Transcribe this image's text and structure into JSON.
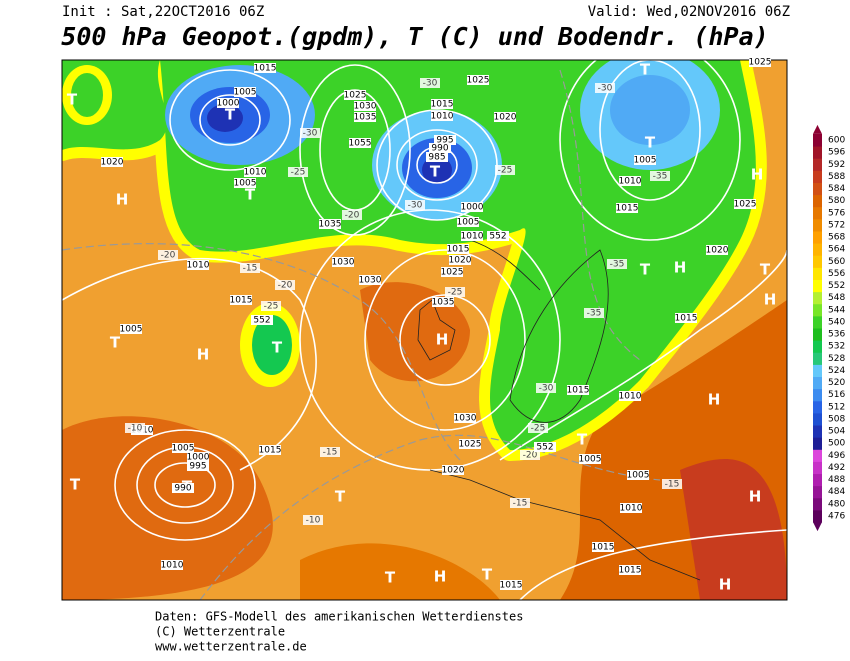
{
  "header": {
    "init": "Init : Sat,22OCT2016 06Z",
    "valid": "Valid: Wed,02NOV2016 06Z",
    "title": "500 hPa Geopot.(gpdm), T (C) und Bodendr. (hPa)"
  },
  "colorbar": {
    "values": [
      476,
      480,
      484,
      488,
      492,
      496,
      500,
      504,
      508,
      512,
      516,
      520,
      524,
      528,
      532,
      536,
      540,
      544,
      548,
      552,
      556,
      560,
      564,
      568,
      572,
      576,
      580,
      584,
      588,
      592,
      596,
      600
    ],
    "colors": [
      "#5c005c",
      "#7a0a7a",
      "#961496",
      "#b01eb0",
      "#c832c8",
      "#dc46dc",
      "#1e1e96",
      "#1e32b4",
      "#1e50d2",
      "#2864e6",
      "#3c8cf0",
      "#50aaf5",
      "#64c8fa",
      "#28c878",
      "#14c850",
      "#1ebe1e",
      "#3cd228",
      "#78e628",
      "#b4f032",
      "#ffff00",
      "#ffe600",
      "#ffc800",
      "#ffb400",
      "#ffa000",
      "#f08c00",
      "#e67800",
      "#dc6400",
      "#d25014",
      "#c83c1e",
      "#b42828",
      "#a01428",
      "#8c0032"
    ]
  },
  "map": {
    "labels": [
      "T",
      "T",
      "H",
      "T",
      "H",
      "T",
      "T",
      "H",
      "T",
      "T",
      "T",
      "H",
      "T",
      "H",
      "T",
      "H",
      "H",
      "T",
      "H",
      "H",
      "T",
      "T",
      "T",
      "H",
      "T",
      "T",
      "1015",
      "1005",
      "1000",
      "1010",
      "1005",
      "1020",
      "1025",
      "1030",
      "1035",
      "1055",
      "1015",
      "1010",
      "995",
      "990",
      "985",
      "1025",
      "1020",
      "1000",
      "1005",
      "1010",
      "1015",
      "1020",
      "1025",
      "1035",
      "1030",
      "1030",
      "1035",
      "1010",
      "1015",
      "1005",
      "1010",
      "1005",
      "1000",
      "995",
      "990",
      "1015",
      "1030",
      "1025",
      "1020",
      "1015",
      "1010",
      "1005",
      "1005",
      "1010",
      "1015",
      "1015",
      "1015",
      "1010",
      "1025",
      "1025",
      "1020",
      "1015",
      "1005",
      "1010",
      "1015",
      "-30",
      "-30",
      "-25",
      "-20",
      "-15",
      "-20",
      "-25",
      "-20",
      "-15",
      "-10",
      "-10",
      "-30",
      "-25",
      "-30",
      "-35",
      "-35",
      "-35",
      "-30",
      "-25",
      "-20",
      "-15",
      "-15",
      "-25",
      "552",
      "552",
      "552"
    ]
  },
  "footer": [
    "Daten: GFS-Modell des amerikanischen Wetterdienstes",
    "(C) Wetterzentrale",
    "www.wetterzentrale.de"
  ]
}
